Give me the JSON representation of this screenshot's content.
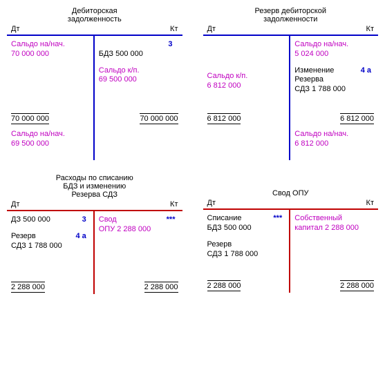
{
  "colors": {
    "blue_line": "#0000c8",
    "red_line": "#c00000",
    "magenta_text": "#c000c0",
    "blue_ref": "#0000c8",
    "black": "#000000",
    "bg": "#ffffff"
  },
  "labels": {
    "dt": "Дт",
    "kt": "Кт"
  },
  "accounts": [
    {
      "id": "acc1",
      "title_lines": [
        "Дебиторская",
        "задолженность"
      ],
      "line_color": "blue",
      "body_min_height": 110,
      "dt_entries": [
        {
          "label": "Сальдо на/нач.",
          "amount": "70 000 000",
          "color": "magenta"
        }
      ],
      "kt_entries": [
        {
          "label": "БДЗ  500 000",
          "amount": "",
          "color": "black",
          "ref": "3",
          "ref_pos": "above-right"
        },
        {
          "label": "Сальдо к/п.",
          "amount": "69 500 000",
          "color": "magenta"
        }
      ],
      "totals": {
        "dt": "70 000 000",
        "kt": "70 000 000"
      },
      "trail": {
        "dt": [
          {
            "label": "Сальдо на/нач.",
            "amount": "69 500 000",
            "color": "magenta"
          }
        ],
        "kt": []
      },
      "trail_min_height": 50
    },
    {
      "id": "acc2",
      "title_lines": [
        "Резерв дебиторской",
        "задолженности"
      ],
      "line_color": "blue",
      "body_min_height": 110,
      "dt_entries": [
        {
          "label": "",
          "amount": "",
          "color": "magenta",
          "spacer": 36
        },
        {
          "label": "Сальдо к/п.",
          "amount": "6 812 000",
          "color": "magenta"
        }
      ],
      "kt_entries": [
        {
          "label": "Сальдо на/нач.",
          "amount": "5 024 000",
          "color": "magenta"
        },
        {
          "label": "Изменение",
          "amount_line2": "Резерва",
          "amount": "СДЗ    1 788 000",
          "color": "black",
          "ref": "4 а",
          "ref_pos": "right-of-first"
        }
      ],
      "totals": {
        "dt": "6 812 000",
        "kt": "6 812 000"
      },
      "trail": {
        "dt": [],
        "kt": [
          {
            "label": "Сальдо на/нач.",
            "amount": "6 812 000",
            "color": "magenta"
          }
        ]
      },
      "trail_min_height": 50
    },
    {
      "id": "acc3",
      "title_lines": [
        "Расходы по списанию",
        "БДЗ и изменению",
        "Резерва СДЗ"
      ],
      "line_color": "red",
      "body_min_height": 100,
      "dt_entries": [
        {
          "label": "ДЗ  500 000",
          "amount": "",
          "color": "black",
          "ref": "3",
          "ref_pos": "right"
        },
        {
          "label": "Резерв",
          "amount": "СДЗ    1 788 000",
          "color": "black",
          "ref": "4 а",
          "ref_pos": "right-of-first"
        }
      ],
      "kt_entries": [
        {
          "label": "Свод",
          "amount": "ОПУ     2 288 000",
          "color": "magenta",
          "ref": "***",
          "ref_pos": "right-of-first"
        }
      ],
      "totals": {
        "dt": "2 288 000",
        "kt": "2 288 000"
      },
      "trail": null
    },
    {
      "id": "acc4",
      "title_lines": [
        "Свод ОПУ"
      ],
      "line_color": "red",
      "body_min_height": 100,
      "title_pad_top": 22,
      "dt_entries": [
        {
          "label": "Списание",
          "amount": "БДЗ    500 000",
          "color": "black",
          "ref": "***",
          "ref_pos": "right-of-first"
        },
        {
          "label": "Резерв",
          "amount": "СДЗ  1 788 000",
          "color": "black"
        }
      ],
      "kt_entries": [
        {
          "label": "Собственный",
          "amount": "капитал  2 288 000",
          "color": "magenta"
        }
      ],
      "totals": {
        "dt": "2 288 000",
        "kt": "2 288 000"
      },
      "trail": null
    }
  ]
}
